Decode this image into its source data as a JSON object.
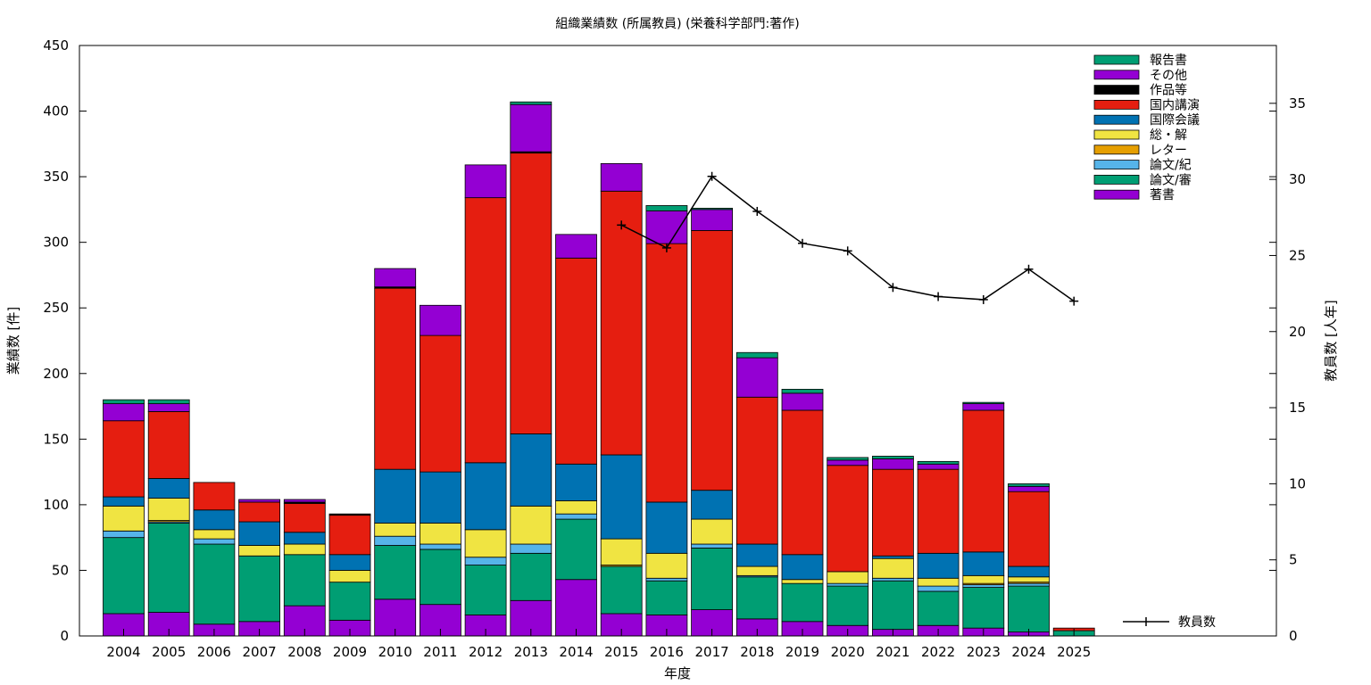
{
  "chart_data": {
    "type": "bar",
    "stacked": true,
    "title": "組織業績数 (所属教員) (栄養科学部門:著作)",
    "xlabel": "年度",
    "ylabel": "業績数 [件]",
    "y2label": "教員数 [人年]",
    "ylim": [
      0,
      450
    ],
    "y2lim": [
      0,
      38.8
    ],
    "yticks": [
      0,
      50,
      100,
      150,
      200,
      250,
      300,
      350,
      400,
      450
    ],
    "y2ticks": [
      0,
      5,
      10,
      15,
      20,
      25,
      30,
      35
    ],
    "categories": [
      "2004",
      "2005",
      "2006",
      "2007",
      "2008",
      "2009",
      "2010",
      "2011",
      "2012",
      "2013",
      "2014",
      "2015",
      "2016",
      "2017",
      "2018",
      "2019",
      "2020",
      "2021",
      "2022",
      "2023",
      "2024",
      "2025"
    ],
    "legend_position": "top-right",
    "series": [
      {
        "name": "著書",
        "color": "#9400d3",
        "values": [
          17,
          18,
          9,
          11,
          23,
          12,
          28,
          24,
          16,
          27,
          43,
          17,
          16,
          20,
          13,
          11,
          8,
          5,
          8,
          6,
          3,
          0
        ]
      },
      {
        "name": "論文/審",
        "color": "#009e73",
        "values": [
          58,
          68,
          61,
          50,
          39,
          29,
          41,
          42,
          38,
          36,
          46,
          36,
          26,
          47,
          32,
          29,
          30,
          37,
          26,
          31,
          35,
          4
        ]
      },
      {
        "name": "論文/紀",
        "color": "#56b4e9",
        "values": [
          5,
          1,
          4,
          0,
          0,
          0,
          7,
          4,
          6,
          7,
          4,
          0,
          2,
          3,
          1,
          0,
          2,
          2,
          4,
          2,
          2,
          0
        ]
      },
      {
        "name": "レター",
        "color": "#e69f00",
        "values": [
          0,
          1,
          0,
          0,
          0,
          0,
          0,
          0,
          0,
          0,
          0,
          1,
          0,
          0,
          0,
          0,
          0,
          0,
          0,
          1,
          1,
          0
        ]
      },
      {
        "name": "総・解",
        "color": "#f0e442",
        "values": [
          19,
          17,
          7,
          8,
          8,
          9,
          10,
          16,
          21,
          29,
          10,
          20,
          19,
          19,
          7,
          3,
          9,
          15,
          6,
          6,
          4,
          0
        ]
      },
      {
        "name": "国際会議",
        "color": "#0072b2",
        "values": [
          7,
          15,
          15,
          18,
          9,
          12,
          41,
          39,
          51,
          55,
          28,
          64,
          39,
          22,
          17,
          19,
          0,
          2,
          19,
          18,
          8,
          0
        ]
      },
      {
        "name": "国内講演",
        "color": "#e51e10",
        "values": [
          58,
          51,
          21,
          15,
          22,
          30,
          138,
          104,
          202,
          214,
          157,
          201,
          197,
          198,
          112,
          110,
          81,
          66,
          64,
          108,
          57,
          2
        ]
      },
      {
        "name": "作品等",
        "color": "#000000",
        "values": [
          0,
          0,
          0,
          0,
          1,
          1,
          1,
          0,
          0,
          1,
          0,
          0,
          0,
          0,
          0,
          0,
          0,
          0,
          0,
          0,
          0,
          0
        ]
      },
      {
        "name": "その他",
        "color": "#9400d3",
        "values": [
          13,
          6,
          0,
          2,
          2,
          0,
          14,
          23,
          25,
          36,
          18,
          21,
          25,
          16,
          30,
          13,
          4,
          8,
          4,
          5,
          4,
          0
        ]
      },
      {
        "name": "報告書",
        "color": "#009e73",
        "values": [
          3,
          3,
          0,
          0,
          0,
          0,
          0,
          0,
          0,
          2,
          0,
          0,
          4,
          1,
          4,
          3,
          2,
          2,
          2,
          1,
          2,
          0
        ]
      }
    ],
    "line_series": {
      "name": "教員数",
      "color": "#000000",
      "axis": "y2",
      "categories": [
        "2015",
        "2016",
        "2017",
        "2018",
        "2019",
        "2020",
        "2021",
        "2022",
        "2023",
        "2024",
        "2025"
      ],
      "values": [
        27.0,
        25.5,
        30.2,
        27.9,
        25.8,
        25.3,
        22.9,
        22.3,
        22.1,
        24.1,
        22.0
      ]
    }
  }
}
